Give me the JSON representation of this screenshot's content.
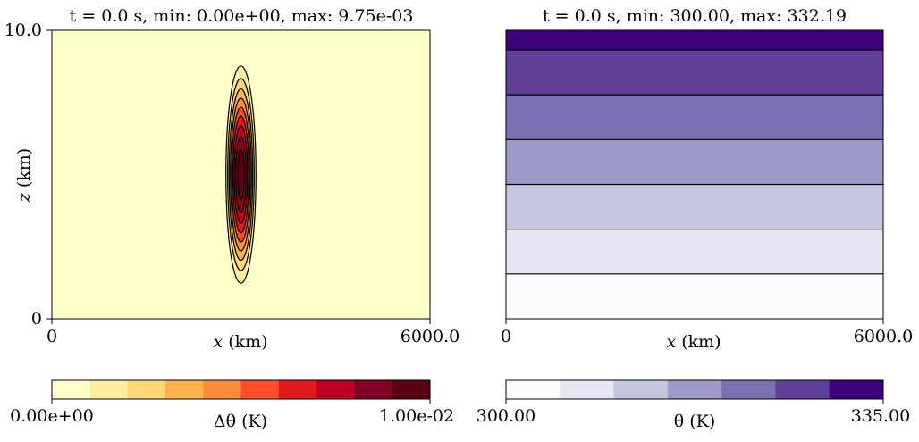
{
  "chart_data": [
    {
      "type": "contour",
      "title": "t = 0.0 s, min: 0.00e+00, max: 9.75e-03",
      "xlabel_var": "x",
      "xlabel_unit": "(km)",
      "ylabel_var": "z",
      "ylabel_unit": "(km)",
      "xlim": [
        0,
        6000.0
      ],
      "ylim": [
        0,
        10.0
      ],
      "xticks": [
        "0",
        "6000.0"
      ],
      "yticks": [
        "0",
        "10.0"
      ],
      "field": "Δθ",
      "field_min": 0.0,
      "field_max": 0.00975,
      "bubble": {
        "x_center": 3000.0,
        "z_center": 5.0,
        "x_halfwidth": 300.0,
        "z_halfwidth": 4.75
      },
      "levels": [
        0.0,
        0.001,
        0.002,
        0.003,
        0.004,
        0.005,
        0.006,
        0.007,
        0.008,
        0.009,
        0.01
      ],
      "colormap": "YlOrRd",
      "colors": [
        "#ffffcc",
        "#ffeda0",
        "#fed976",
        "#feb24c",
        "#fd8d3c",
        "#fc4e2a",
        "#e31a1c",
        "#bd0026",
        "#800026",
        "#5a0013"
      ],
      "colorbar": {
        "label": "Δθ (K)",
        "min_label": "0.00e+00",
        "max_label": "1.00e-02",
        "n_bins": 10
      }
    },
    {
      "type": "contour",
      "title": "t = 0.0 s, min: 300.00, max: 332.19",
      "xlabel_var": "x",
      "xlabel_unit": "(km)",
      "xlim": [
        0,
        6000.0
      ],
      "ylim": [
        0,
        10.0
      ],
      "xticks": [
        "0",
        "6000.0"
      ],
      "field": "θ",
      "field_min": 300.0,
      "field_max": 332.19,
      "levels": [
        300,
        305,
        310,
        315,
        320,
        325,
        330,
        335
      ],
      "colormap": "Purples",
      "colors": [
        "#fcfbfd",
        "#e7e6f2",
        "#c6c7e1",
        "#9e9ac8",
        "#7b70b3",
        "#5f3f98",
        "#3f007d"
      ],
      "colorbar": {
        "label": "θ (K)",
        "min_label": "300.00",
        "max_label": "335.00",
        "n_bins": 7
      }
    }
  ]
}
